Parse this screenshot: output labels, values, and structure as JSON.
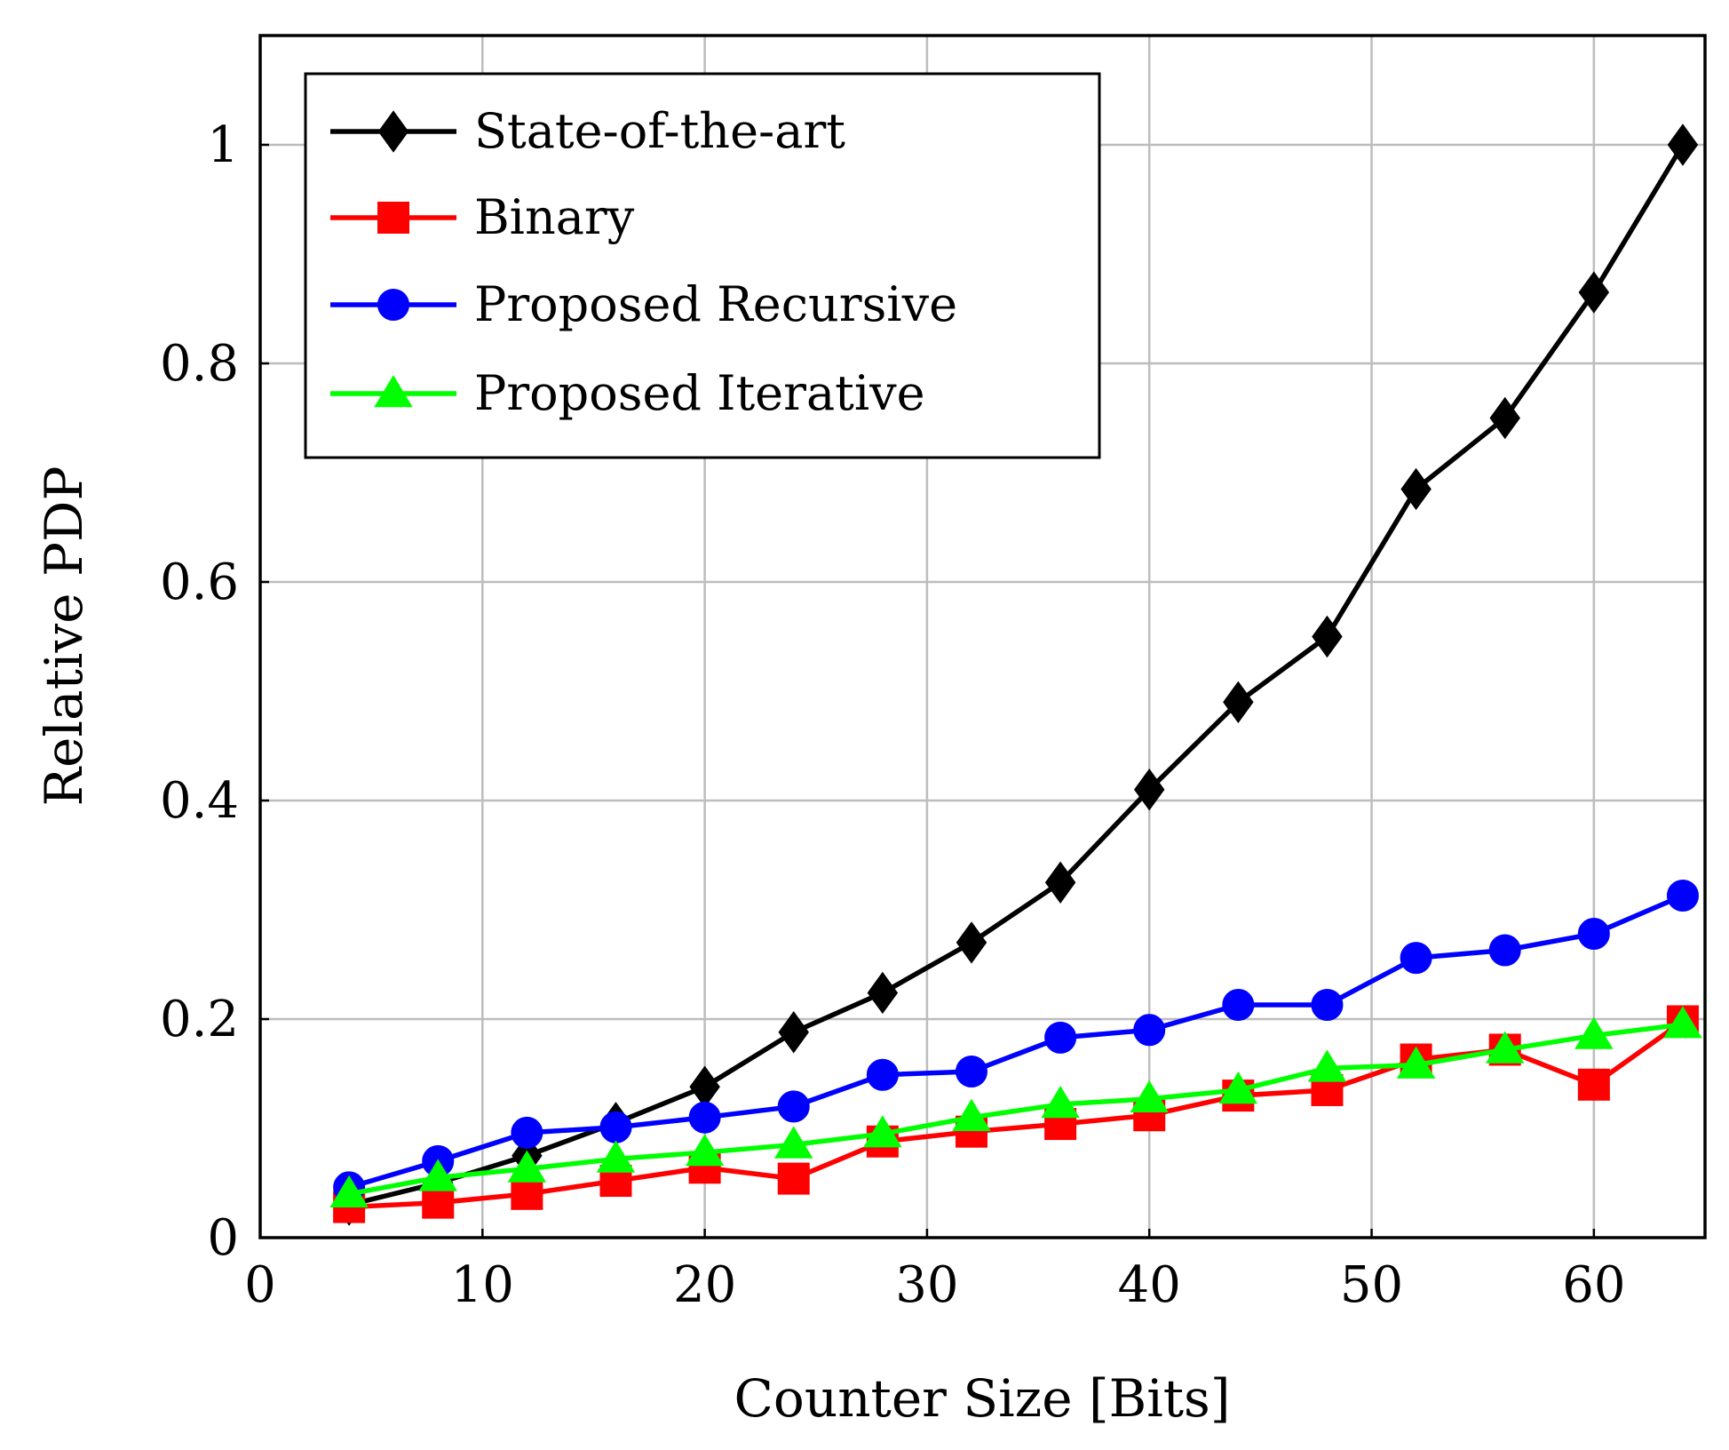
{
  "chart_data": {
    "type": "line",
    "title": "",
    "xlabel": "Counter Size [Bits]",
    "ylabel": "Relative PDP",
    "xlim": [
      0,
      65
    ],
    "ylim": [
      0,
      1.1
    ],
    "grid": true,
    "legend_position": "top-left",
    "x_ticks": [
      0,
      10,
      20,
      30,
      40,
      50,
      60
    ],
    "x_tick_labels": [
      "0",
      "10",
      "20",
      "30",
      "40",
      "50",
      "60"
    ],
    "y_ticks": [
      0,
      0.2,
      0.4,
      0.6,
      0.8,
      1
    ],
    "y_tick_labels": [
      "0",
      "0.2",
      "0.4",
      "0.6",
      "0.8",
      "1"
    ],
    "x": [
      4,
      8,
      12,
      16,
      20,
      24,
      28,
      32,
      36,
      40,
      44,
      48,
      52,
      56,
      60,
      64
    ],
    "series": [
      {
        "name": "State-of-the-art",
        "color": "#000000",
        "marker": "diamond",
        "values": [
          0.03,
          0.05,
          0.075,
          0.105,
          0.138,
          0.188,
          0.224,
          0.27,
          0.325,
          0.41,
          0.49,
          0.55,
          0.685,
          0.75,
          0.865,
          1.0
        ]
      },
      {
        "name": "Binary",
        "color": "#ff0000",
        "marker": "square",
        "values": [
          0.028,
          0.032,
          0.04,
          0.052,
          0.064,
          0.054,
          0.088,
          0.097,
          0.104,
          0.112,
          0.13,
          0.135,
          0.163,
          0.172,
          0.14,
          0.198
        ]
      },
      {
        "name": "Proposed Recursive",
        "color": "#0000ff",
        "marker": "circle",
        "values": [
          0.046,
          0.07,
          0.096,
          0.101,
          0.11,
          0.12,
          0.149,
          0.152,
          0.183,
          0.19,
          0.213,
          0.213,
          0.256,
          0.263,
          0.278,
          0.313
        ]
      },
      {
        "name": "Proposed Iterative",
        "color": "#00ff00",
        "marker": "triangle",
        "values": [
          0.04,
          0.055,
          0.063,
          0.072,
          0.078,
          0.085,
          0.095,
          0.11,
          0.122,
          0.127,
          0.135,
          0.155,
          0.158,
          0.172,
          0.185,
          0.195
        ]
      }
    ]
  }
}
